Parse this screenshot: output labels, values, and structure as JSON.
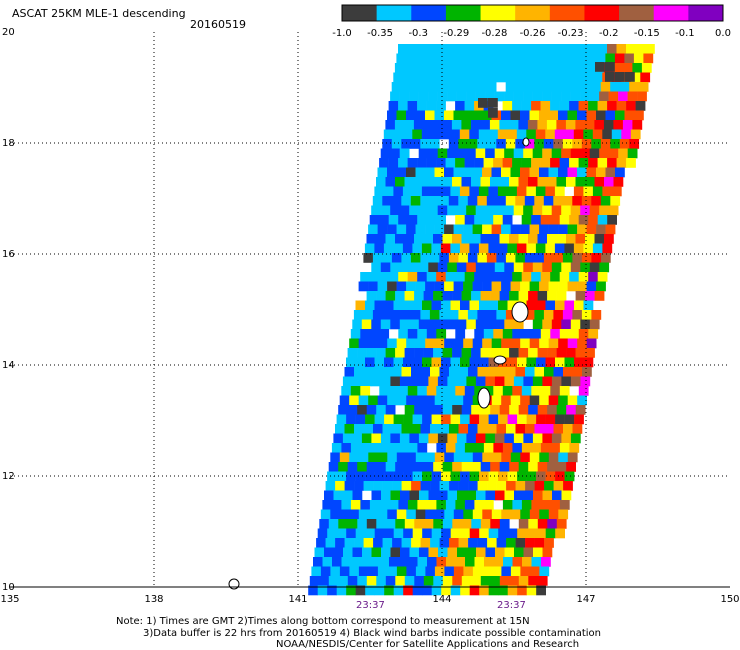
{
  "title": "ASCAT 25KM MLE-1 descending",
  "date": "20160519",
  "colorbar": {
    "labels": [
      "-1.0",
      "-0.35",
      "-0.3",
      "-0.29",
      "-0.28",
      "-0.26",
      "-0.23",
      "-0.2",
      "-0.15",
      "-0.1",
      "0.0"
    ],
    "colors": [
      "#3c3c3c",
      "#00c8ff",
      "#0046ff",
      "#00b400",
      "#ffff00",
      "#ffb400",
      "#ff5000",
      "#ff0000",
      "#a06040",
      "#ff00ff",
      "#8000c0"
    ]
  },
  "map": {
    "lon_min": 135,
    "lon_max": 150,
    "lat_min": 10,
    "lat_max": 20,
    "x_ticks": [
      "135",
      "138",
      "141",
      "144",
      "147",
      "150"
    ],
    "y_ticks": [
      "10",
      "12",
      "14",
      "16",
      "18",
      "20"
    ],
    "grid_lons": [
      138,
      141,
      144,
      147
    ],
    "grid_lats": [
      12,
      14,
      16,
      18
    ],
    "pass_times": [
      "23:37",
      "23:37"
    ],
    "pass_time_lons": [
      142.2,
      145.2
    ]
  },
  "notes": [
    "Note: 1) Times are GMT 2)Times along bottom correspond to measurement at 15N",
    "3)Data buffer is 22 hrs from 20160519 4) Black wind barbs indicate possible contamination",
    "NOAA/NESDIS/Center for Satellite Applications and Research"
  ]
}
